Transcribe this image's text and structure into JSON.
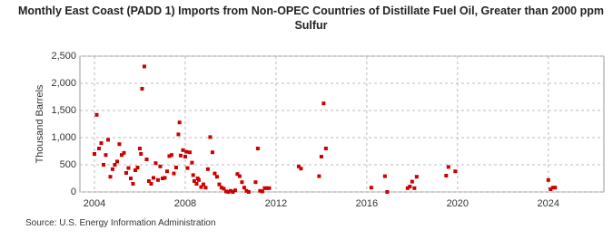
{
  "chart_data": {
    "type": "scatter",
    "title": "Monthly East Coast (PADD 1) Imports from Non-OPEC Countries of Distillate Fuel Oil, Greater than 2000 ppm Sulfur",
    "y_label": "Thousand Barrels",
    "source": "Source: U.S. Energy Information Administration",
    "series": [
      {
        "name": "Imports",
        "color": "#cc0000",
        "x": [
          2004.0,
          2004.1,
          2004.2,
          2004.3,
          2004.4,
          2004.5,
          2004.6,
          2004.7,
          2004.8,
          2004.9,
          2005.0,
          2005.1,
          2005.2,
          2005.3,
          2005.4,
          2005.5,
          2005.6,
          2005.7,
          2005.8,
          2005.9,
          2006.0,
          2006.05,
          2006.1,
          2006.2,
          2006.3,
          2006.4,
          2006.5,
          2006.6,
          2006.7,
          2006.8,
          2006.9,
          2007.0,
          2007.1,
          2007.2,
          2007.3,
          2007.4,
          2007.5,
          2007.6,
          2007.7,
          2007.75,
          2007.8,
          2007.9,
          2008.0,
          2008.05,
          2008.1,
          2008.2,
          2008.3,
          2008.35,
          2008.4,
          2008.5,
          2008.55,
          2008.6,
          2008.7,
          2008.8,
          2008.9,
          2009.0,
          2009.1,
          2009.2,
          2009.3,
          2009.4,
          2009.5,
          2009.6,
          2009.7,
          2009.8,
          2009.9,
          2010.0,
          2010.1,
          2010.2,
          2010.3,
          2010.4,
          2010.5,
          2010.6,
          2010.7,
          2010.8,
          2011.1,
          2011.2,
          2011.3,
          2011.4,
          2011.5,
          2011.6,
          2011.7,
          2013.0,
          2013.1,
          2013.9,
          2014.0,
          2014.1,
          2014.2,
          2016.2,
          2016.8,
          2016.9,
          2017.8,
          2017.9,
          2018.0,
          2018.1,
          2018.2,
          2019.5,
          2019.6,
          2019.9,
          2024.0,
          2024.1,
          2024.2,
          2024.3
        ],
        "values": [
          700,
          1420,
          800,
          900,
          500,
          680,
          960,
          280,
          420,
          500,
          560,
          880,
          680,
          720,
          350,
          440,
          250,
          150,
          400,
          450,
          800,
          700,
          1900,
          2310,
          600,
          200,
          150,
          260,
          530,
          220,
          470,
          250,
          260,
          380,
          660,
          680,
          340,
          450,
          1060,
          1280,
          670,
          770,
          650,
          740,
          440,
          730,
          540,
          310,
          200,
          150,
          250,
          220,
          90,
          140,
          80,
          420,
          1010,
          730,
          340,
          280,
          140,
          80,
          60,
          10,
          0,
          20,
          0,
          30,
          330,
          290,
          180,
          80,
          20,
          0,
          180,
          800,
          20,
          10,
          70,
          70,
          70,
          470,
          430,
          290,
          650,
          1630,
          800,
          80,
          290,
          0,
          70,
          100,
          190,
          70,
          280,
          300,
          460,
          380,
          220,
          50,
          80,
          80
        ]
      }
    ],
    "xlim": [
      2003.36,
      2026.45
    ],
    "xticks": [
      2004,
      2008,
      2012,
      2016,
      2020,
      2024
    ],
    "ylim": [
      0,
      2500
    ],
    "yticks": [
      0,
      500,
      {
        "value": 1000,
        "label": "1,000"
      },
      {
        "value": 1500,
        "label": "1,500"
      },
      {
        "value": 2000,
        "label": "2,000"
      },
      {
        "value": 2500,
        "label": "2,500"
      }
    ],
    "grid": true
  }
}
